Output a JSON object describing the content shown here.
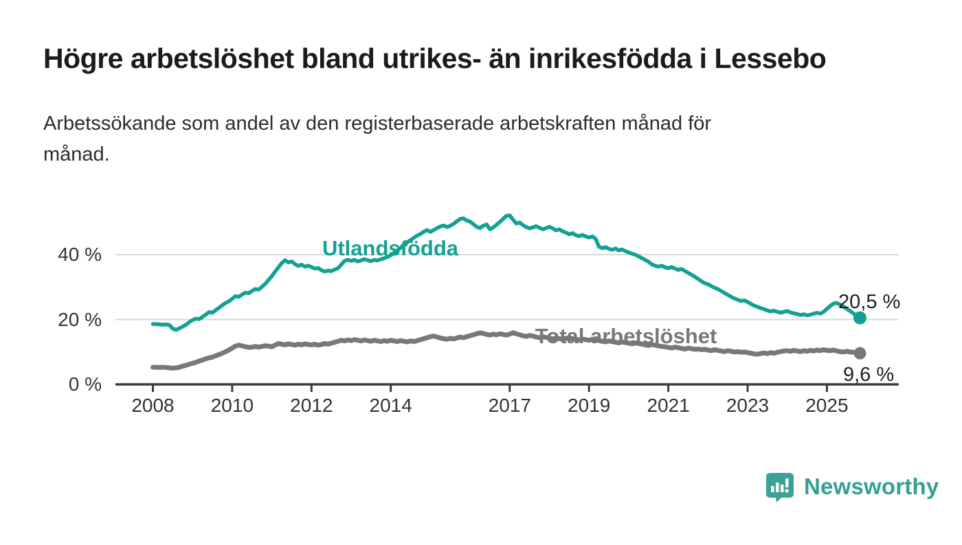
{
  "title": "Högre arbetslöshet bland utrikes- än inrikesfödda i Lessebo",
  "subtitle_lines": [
    "Arbetssökande som andel av den registerbaserade arbetskraften månad för",
    "månad."
  ],
  "branding": {
    "logo_text": "Newsworthy",
    "logo_icon": "bar-chart-speech-bubble-icon"
  },
  "colors": {
    "foreign_born": "#14a192",
    "total": "#787878",
    "grid": "#d9d9d9",
    "axis": "#3b3b3b",
    "axis_text": "#333333",
    "value_text": "#1e1e1e",
    "logo": "#3ba096"
  },
  "chart_data": {
    "type": "line",
    "frequency": "monthly",
    "x_start_year": 2008,
    "x_start_month": 1,
    "x_end_year": 2025,
    "x_end_month": 11,
    "x_tick_years": [
      2008,
      2010,
      2012,
      2014,
      2017,
      2019,
      2021,
      2023,
      2025
    ],
    "y_ticks": [
      {
        "value": 0,
        "label": "0 %"
      },
      {
        "value": 20,
        "label": "20 %"
      },
      {
        "value": 40,
        "label": "40 %"
      }
    ],
    "ylim": [
      0,
      55
    ],
    "grid": true,
    "legend_position": "inline-labels",
    "series": [
      {
        "name": "Utlandsfödda",
        "color": "#14a192",
        "end_value": 20.5,
        "end_label": "20,5 %",
        "values": [
          18.6,
          18.6,
          18.5,
          18.4,
          18.5,
          18.3,
          17.2,
          16.8,
          17.3,
          17.8,
          18.4,
          19.2,
          19.8,
          20.3,
          20.1,
          20.8,
          21.5,
          22.3,
          22.1,
          22.9,
          23.6,
          24.4,
          25.1,
          25.6,
          26.4,
          27.2,
          27.0,
          27.7,
          28.3,
          28.1,
          28.8,
          29.4,
          29.2,
          30.1,
          31.0,
          32.2,
          33.4,
          34.8,
          36.1,
          37.4,
          38.3,
          37.6,
          37.9,
          37.1,
          36.5,
          36.9,
          36.3,
          36.6,
          36.2,
          35.7,
          35.9,
          35.2,
          34.8,
          35.1,
          34.9,
          35.4,
          35.8,
          36.9,
          38.1,
          38.4,
          38.1,
          38.4,
          37.9,
          38.2,
          38.6,
          38.3,
          38.0,
          38.4,
          38.2,
          38.6,
          38.9,
          39.3,
          39.8,
          40.6,
          41.3,
          42.1,
          43.0,
          43.8,
          44.5,
          45.2,
          45.9,
          46.4,
          47.1,
          47.6,
          47.0,
          47.6,
          48.2,
          48.7,
          49.0,
          48.5,
          48.9,
          49.5,
          50.3,
          51.0,
          51.2,
          50.5,
          50.2,
          49.4,
          48.6,
          48.2,
          48.9,
          49.3,
          47.8,
          48.4,
          49.2,
          50.1,
          51.0,
          52.0,
          52.1,
          50.8,
          49.6,
          49.9,
          49.1,
          48.5,
          48.1,
          48.4,
          48.8,
          48.3,
          47.8,
          48.2,
          48.6,
          48.1,
          47.5,
          47.8,
          47.2,
          46.8,
          46.3,
          46.6,
          46.0,
          45.7,
          46.1,
          45.6,
          45.3,
          45.6,
          44.9,
          42.5,
          42.0,
          42.3,
          41.8,
          41.5,
          41.9,
          41.3,
          41.6,
          41.1,
          40.7,
          40.3,
          40.0,
          39.5,
          38.9,
          38.4,
          37.8,
          37.0,
          36.6,
          36.3,
          36.6,
          36.1,
          35.8,
          36.2,
          35.7,
          35.3,
          35.6,
          35.0,
          34.4,
          33.8,
          33.2,
          32.5,
          31.8,
          31.2,
          30.9,
          30.3,
          29.8,
          29.4,
          28.8,
          28.2,
          27.6,
          27.0,
          26.5,
          26.1,
          25.7,
          25.9,
          25.4,
          24.8,
          24.3,
          23.9,
          23.5,
          23.2,
          22.8,
          22.5,
          22.7,
          22.4,
          22.1,
          22.4,
          22.6,
          22.2,
          21.9,
          21.7,
          21.4,
          21.6,
          21.3,
          21.5,
          21.8,
          22.1,
          21.8,
          22.4,
          23.3,
          24.2,
          24.9,
          25.1,
          24.6,
          24.0,
          23.3,
          22.6,
          21.9,
          21.2,
          20.5
        ]
      },
      {
        "name": "Total arbetslöshet",
        "color": "#787878",
        "end_value": 9.6,
        "end_label": "9,6 %",
        "values": [
          5.3,
          5.3,
          5.2,
          5.3,
          5.2,
          5.1,
          5.0,
          5.1,
          5.3,
          5.6,
          5.9,
          6.2,
          6.5,
          6.8,
          7.2,
          7.5,
          7.9,
          8.2,
          8.4,
          8.8,
          9.2,
          9.6,
          10.1,
          10.6,
          11.2,
          11.8,
          12.1,
          11.9,
          11.6,
          11.4,
          11.5,
          11.7,
          11.5,
          11.7,
          11.9,
          11.8,
          11.6,
          12.1,
          12.6,
          12.4,
          12.2,
          12.5,
          12.3,
          12.1,
          12.4,
          12.2,
          12.5,
          12.3,
          12.2,
          12.4,
          12.1,
          12.3,
          12.6,
          12.4,
          12.7,
          13.0,
          13.3,
          13.6,
          13.4,
          13.7,
          13.5,
          13.8,
          13.6,
          13.4,
          13.7,
          13.5,
          13.3,
          13.6,
          13.4,
          13.2,
          13.5,
          13.3,
          13.6,
          13.4,
          13.2,
          13.5,
          13.3,
          13.1,
          13.4,
          13.2,
          13.5,
          13.8,
          14.1,
          14.4,
          14.7,
          14.9,
          14.6,
          14.3,
          14.1,
          13.9,
          14.2,
          14.0,
          14.3,
          14.6,
          14.4,
          14.7,
          15.0,
          15.3,
          15.6,
          15.9,
          15.7,
          15.4,
          15.2,
          15.5,
          15.3,
          15.6,
          15.4,
          15.2,
          15.5,
          15.9,
          15.6,
          15.3,
          15.0,
          14.8,
          15.1,
          14.9,
          14.6,
          14.4,
          14.7,
          14.5,
          14.2,
          14.0,
          14.3,
          14.1,
          13.9,
          14.2,
          14.4,
          14.1,
          13.9,
          13.7,
          14.0,
          13.8,
          13.6,
          13.9,
          13.7,
          13.5,
          13.3,
          13.1,
          13.4,
          13.2,
          13.0,
          12.8,
          13.1,
          12.9,
          12.7,
          12.5,
          12.8,
          12.6,
          12.4,
          12.2,
          12.0,
          12.3,
          12.1,
          11.9,
          11.7,
          11.6,
          11.4,
          11.2,
          11.5,
          11.3,
          11.1,
          10.9,
          11.2,
          11.0,
          10.8,
          10.9,
          10.7,
          10.8,
          10.6,
          10.4,
          10.7,
          10.5,
          10.3,
          10.1,
          10.4,
          10.2,
          10.0,
          10.1,
          9.9,
          10.0,
          9.8,
          9.6,
          9.4,
          9.3,
          9.5,
          9.7,
          9.5,
          9.8,
          9.6,
          9.9,
          10.1,
          10.3,
          10.4,
          10.2,
          10.5,
          10.3,
          10.1,
          10.4,
          10.2,
          10.5,
          10.3,
          10.6,
          10.4,
          10.7,
          10.5,
          10.4,
          10.6,
          10.3,
          10.1,
          10.0,
          10.2,
          10.0,
          9.9,
          9.7,
          9.6
        ]
      }
    ]
  },
  "annotations": {
    "series_label_foreign": "Utlandsfödda",
    "series_label_total": "Total arbetslöshet",
    "end_label_foreign": "20,5 %",
    "end_label_total": "9,6 %"
  }
}
